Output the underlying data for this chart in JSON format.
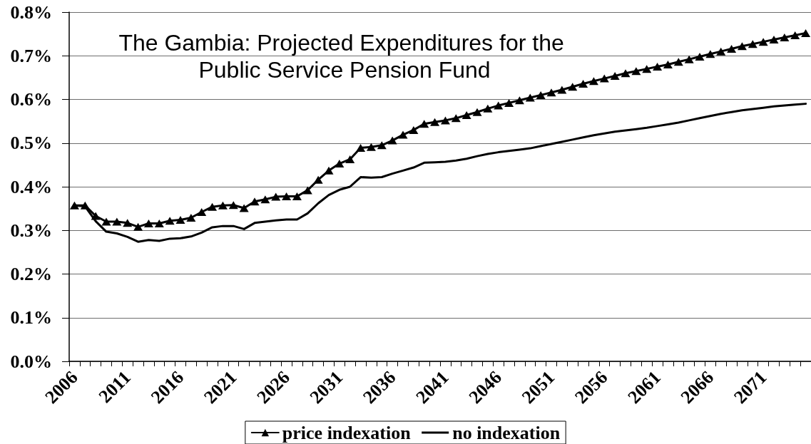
{
  "chart_data": {
    "type": "line",
    "title": "The Gambia: Projected Expenditures for the Public Service Pension Fund",
    "categories": [
      "2006",
      null,
      null,
      null,
      null,
      "2011",
      null,
      null,
      null,
      null,
      "2016",
      null,
      null,
      null,
      null,
      "2021",
      null,
      null,
      null,
      null,
      "2026",
      null,
      null,
      null,
      null,
      "2031",
      null,
      null,
      null,
      null,
      "2036",
      null,
      null,
      null,
      null,
      "2041",
      null,
      null,
      null,
      null,
      "2046",
      null,
      null,
      null,
      null,
      "2051",
      null,
      null,
      null,
      null,
      "2056",
      null,
      null,
      null,
      null,
      "2061",
      null,
      null,
      null,
      null,
      "2066",
      null,
      null,
      null,
      null,
      "2071",
      null,
      null,
      null,
      null
    ],
    "series": [
      {
        "name": "price indexation",
        "color": "#000000",
        "marker": "triangle",
        "values": [
          0.357,
          0.357,
          0.333,
          0.32,
          0.32,
          0.317,
          0.308,
          0.316,
          0.316,
          0.322,
          0.324,
          0.329,
          0.342,
          0.354,
          0.357,
          0.358,
          0.351,
          0.366,
          0.371,
          0.377,
          0.378,
          0.378,
          0.392,
          0.416,
          0.437,
          0.453,
          0.463,
          0.489,
          0.491,
          0.495,
          0.506,
          0.519,
          0.53,
          0.544,
          0.548,
          0.552,
          0.557,
          0.564,
          0.571,
          0.579,
          0.586,
          0.592,
          0.598,
          0.604,
          0.61,
          0.616,
          0.622,
          0.629,
          0.636,
          0.642,
          0.648,
          0.654,
          0.66,
          0.665,
          0.67,
          0.675,
          0.68,
          0.686,
          0.692,
          0.698,
          0.704,
          0.71,
          0.716,
          0.722,
          0.727,
          0.732,
          0.737,
          0.742,
          0.747,
          0.752
        ]
      },
      {
        "name": "no indexation",
        "color": "#000000",
        "marker": "none",
        "values": [
          0.357,
          0.355,
          0.321,
          0.297,
          0.293,
          0.285,
          0.274,
          0.278,
          0.276,
          0.281,
          0.282,
          0.286,
          0.295,
          0.307,
          0.31,
          0.31,
          0.303,
          0.317,
          0.32,
          0.323,
          0.325,
          0.325,
          0.339,
          0.362,
          0.381,
          0.393,
          0.4,
          0.422,
          0.421,
          0.422,
          0.43,
          0.437,
          0.444,
          0.455,
          0.456,
          0.457,
          0.46,
          0.464,
          0.47,
          0.475,
          0.479,
          0.482,
          0.485,
          0.488,
          0.493,
          0.498,
          0.503,
          0.508,
          0.513,
          0.518,
          0.522,
          0.526,
          0.529,
          0.532,
          0.535,
          0.539,
          0.543,
          0.547,
          0.552,
          0.557,
          0.562,
          0.567,
          0.571,
          0.575,
          0.578,
          0.581,
          0.584,
          0.586,
          0.588,
          0.59
        ]
      }
    ],
    "ylim": [
      0,
      0.8
    ],
    "yticks": [
      {
        "value": 0,
        "label": "0.0%"
      },
      {
        "value": 0.1,
        "label": "0.1%"
      },
      {
        "value": 0.2,
        "label": "0.2%"
      },
      {
        "value": 0.3,
        "label": "0.3%"
      },
      {
        "value": 0.4,
        "label": "0.4%"
      },
      {
        "value": 0.5,
        "label": "0.5%"
      },
      {
        "value": 0.6,
        "label": "0.6%"
      },
      {
        "value": 0.7,
        "label": "0.7%"
      },
      {
        "value": 0.8,
        "label": "0.8%"
      }
    ],
    "grid": "y",
    "legend": "bottom"
  }
}
